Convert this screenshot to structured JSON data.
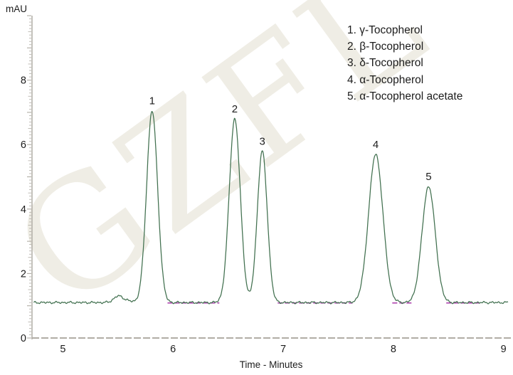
{
  "watermark": {
    "text": "GZFL",
    "color": "#efede5"
  },
  "legend": {
    "items": [
      "1. γ-Tocopherol",
      "2. β-Tocopherol",
      "3. δ-Tocopherol",
      "4. α-Tocopherol",
      "5. α-Tocopherol acetate"
    ]
  },
  "chart_data": {
    "type": "line",
    "title": "",
    "xlabel": "Time - Minutes",
    "ylabel": "mAU",
    "xlim": [
      4.72,
      9.06
    ],
    "ylim": [
      0,
      10
    ],
    "x_ticks": [
      5,
      6,
      7,
      8,
      9
    ],
    "y_ticks": [
      0,
      2,
      4,
      6,
      8
    ],
    "grid": false,
    "legend_position": "top-right",
    "baseline_mAU": 1.1,
    "trace_color": "#41704f",
    "secondary_trace_color": "#b44fb4",
    "axis_color": "#b1ada5",
    "text_color": "#1c1c1c",
    "peaks": [
      {
        "label": "1",
        "name": "γ-Tocopherol",
        "time_min": 5.81,
        "apex_mAU": 7.05,
        "sigma_min": 0.05
      },
      {
        "label": "2",
        "name": "β-Tocopherol",
        "time_min": 6.56,
        "apex_mAU": 6.8,
        "sigma_min": 0.05
      },
      {
        "label": "3",
        "name": "δ-Tocopherol",
        "time_min": 6.81,
        "apex_mAU": 5.8,
        "sigma_min": 0.045
      },
      {
        "label": "4",
        "name": "α-Tocopherol",
        "time_min": 7.84,
        "apex_mAU": 5.7,
        "sigma_min": 0.065
      },
      {
        "label": "5",
        "name": "α-Tocopherol acetate",
        "time_min": 8.32,
        "apex_mAU": 4.7,
        "sigma_min": 0.06
      }
    ],
    "baseline_disturbance": {
      "time_min": 5.5,
      "height_mAU": 0.18,
      "sigma_min": 0.04
    },
    "secondary_baseline_segments_min": [
      [
        5.95,
        6.42
      ],
      [
        6.95,
        7.63
      ],
      [
        7.99,
        8.17
      ],
      [
        8.48,
        8.8
      ]
    ]
  }
}
